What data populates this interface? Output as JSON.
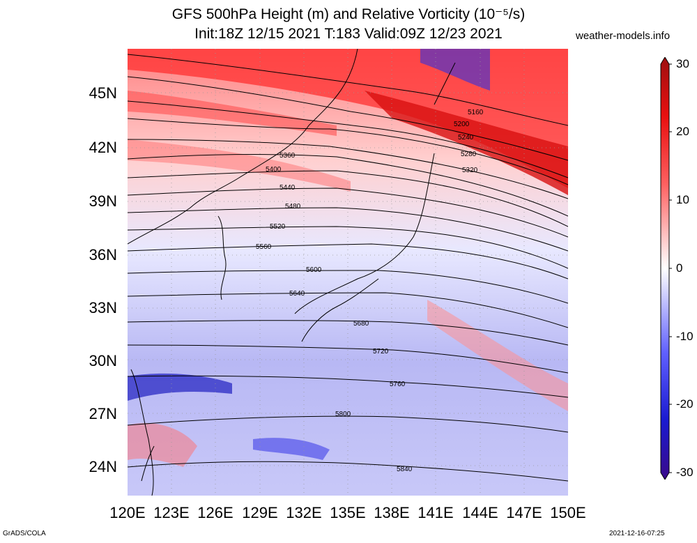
{
  "header": {
    "title_line1": "GFS 500hPa Height (m) and Relative Vorticity (10⁻⁵/s)",
    "title_line2": "Init:18Z 12/15 2021 T:183 Valid:09Z 12/23 2021",
    "site": "weather-models.info"
  },
  "axes": {
    "lat_labels": [
      "45N",
      "42N",
      "39N",
      "36N",
      "33N",
      "30N",
      "27N",
      "24N"
    ],
    "lon_labels": [
      "120E",
      "123E",
      "126E",
      "129E",
      "132E",
      "135E",
      "138E",
      "141E",
      "144E",
      "147E",
      "150E"
    ]
  },
  "colorbar": {
    "labels": [
      "30",
      "20",
      "10",
      "0",
      "-10",
      "-20",
      "-30"
    ],
    "colors": [
      "#3a0a8a",
      "#1a1ad0",
      "#6060ff",
      "#c8c8ff",
      "#ffffff",
      "#ffc8c8",
      "#ff6060",
      "#e81010",
      "#9e1010"
    ]
  },
  "contours": {
    "labels": [
      "5160",
      "5200",
      "5240",
      "5280",
      "5320",
      "5360",
      "5400",
      "5440",
      "5480",
      "5520",
      "5560",
      "5600",
      "5640",
      "5680",
      "5720",
      "5760",
      "5800",
      "5840"
    ]
  },
  "footer": {
    "left": "GrADS/COLA",
    "right": "2021-12-16-07:25"
  }
}
